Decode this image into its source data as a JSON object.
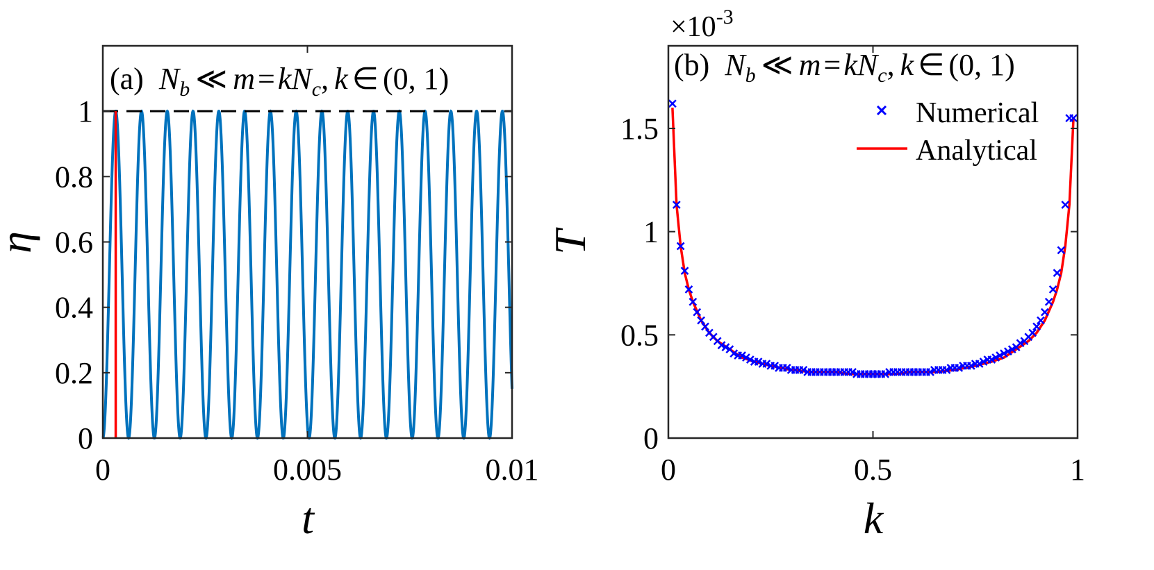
{
  "chart_data": [
    {
      "panel": "a",
      "type": "line",
      "annotation": "(a)  N_b ≪ m = kN_c, k ∈ (0, 1)",
      "xlabel": "t",
      "ylabel": "η",
      "xlim": [
        0,
        0.01
      ],
      "ylim": [
        0,
        1.2
      ],
      "xticks": [
        0,
        0.005,
        0.01
      ],
      "xtick_labels": [
        "0",
        "0.005",
        "0.01"
      ],
      "yticks": [
        0,
        0.2,
        0.4,
        0.6,
        0.8,
        1
      ],
      "ytick_labels": [
        "0",
        "0.2",
        "0.4",
        "0.6",
        "0.8",
        "1"
      ],
      "grid": false,
      "series": [
        {
          "style": "solid",
          "color": "#0072BD",
          "function": "sin^2",
          "params": {
            "period": 0.00063,
            "amplitude": 1
          },
          "x_range": [
            0,
            0.01
          ]
        },
        {
          "style": "vertical-line",
          "color": "#FF0000",
          "x": 0.000315,
          "y_range": [
            0,
            1
          ]
        },
        {
          "style": "dashed-reference",
          "color": "#000000",
          "y": 1
        }
      ]
    },
    {
      "panel": "b",
      "type": "scatter",
      "annotation": "(b)  N_b ≪ m = kN_c, k ∈ (0, 1)",
      "xlabel": "k",
      "ylabel": "T",
      "exponent_label": "×10",
      "exponent_power": "-3",
      "xlim": [
        0,
        1
      ],
      "ylim": [
        0,
        1.9
      ],
      "xticks": [
        0,
        0.5,
        1
      ],
      "xtick_labels": [
        "0",
        "0.5",
        "1"
      ],
      "yticks": [
        0,
        0.5,
        1,
        1.5
      ],
      "ytick_labels": [
        "0",
        "0.5",
        "1",
        "1.5"
      ],
      "grid": false,
      "legend_position": "top-right",
      "series": [
        {
          "name": "Numerical",
          "marker": "x",
          "color": "#0000FF",
          "x": [
            0.01,
            0.02,
            0.03,
            0.04,
            0.05,
            0.06,
            0.07,
            0.08,
            0.09,
            0.1,
            0.11,
            0.12,
            0.13,
            0.14,
            0.15,
            0.16,
            0.17,
            0.18,
            0.19,
            0.2,
            0.21,
            0.22,
            0.23,
            0.24,
            0.25,
            0.26,
            0.27,
            0.28,
            0.29,
            0.3,
            0.31,
            0.32,
            0.33,
            0.34,
            0.35,
            0.36,
            0.37,
            0.38,
            0.39,
            0.4,
            0.41,
            0.42,
            0.43,
            0.44,
            0.45,
            0.46,
            0.47,
            0.48,
            0.49,
            0.5,
            0.51,
            0.52,
            0.53,
            0.54,
            0.55,
            0.56,
            0.57,
            0.58,
            0.59,
            0.6,
            0.61,
            0.62,
            0.63,
            0.64,
            0.65,
            0.66,
            0.67,
            0.68,
            0.69,
            0.7,
            0.71,
            0.72,
            0.73,
            0.74,
            0.75,
            0.76,
            0.77,
            0.78,
            0.79,
            0.8,
            0.81,
            0.82,
            0.83,
            0.84,
            0.85,
            0.86,
            0.87,
            0.88,
            0.89,
            0.9,
            0.91,
            0.92,
            0.93,
            0.94,
            0.95,
            0.96,
            0.97,
            0.98,
            0.99
          ],
          "values": [
            1.62,
            1.13,
            0.93,
            0.81,
            0.72,
            0.66,
            0.61,
            0.57,
            0.54,
            0.51,
            0.49,
            0.47,
            0.45,
            0.44,
            0.43,
            0.41,
            0.4,
            0.4,
            0.39,
            0.38,
            0.37,
            0.37,
            0.36,
            0.36,
            0.35,
            0.35,
            0.34,
            0.34,
            0.34,
            0.33,
            0.33,
            0.33,
            0.33,
            0.32,
            0.32,
            0.32,
            0.32,
            0.32,
            0.32,
            0.32,
            0.32,
            0.32,
            0.32,
            0.32,
            0.32,
            0.31,
            0.31,
            0.31,
            0.31,
            0.31,
            0.31,
            0.31,
            0.31,
            0.32,
            0.32,
            0.32,
            0.32,
            0.32,
            0.32,
            0.32,
            0.32,
            0.32,
            0.32,
            0.32,
            0.33,
            0.33,
            0.33,
            0.33,
            0.34,
            0.34,
            0.34,
            0.35,
            0.35,
            0.35,
            0.36,
            0.36,
            0.37,
            0.38,
            0.38,
            0.39,
            0.4,
            0.41,
            0.42,
            0.43,
            0.44,
            0.46,
            0.47,
            0.49,
            0.51,
            0.54,
            0.57,
            0.61,
            0.66,
            0.72,
            0.8,
            0.91,
            1.13,
            1.55,
            1.55
          ]
        },
        {
          "name": "Analytical",
          "style": "solid",
          "color": "#FF0000",
          "x": [
            0.01,
            0.02,
            0.03,
            0.04,
            0.05,
            0.06,
            0.08,
            0.1,
            0.12,
            0.15,
            0.18,
            0.21,
            0.25,
            0.3,
            0.35,
            0.4,
            0.45,
            0.5,
            0.55,
            0.6,
            0.65,
            0.7,
            0.75,
            0.79,
            0.82,
            0.85,
            0.88,
            0.9,
            0.92,
            0.94,
            0.95,
            0.96,
            0.97,
            0.98,
            0.99
          ],
          "values": [
            1.6,
            1.13,
            0.93,
            0.8,
            0.72,
            0.66,
            0.57,
            0.51,
            0.47,
            0.43,
            0.39,
            0.37,
            0.35,
            0.33,
            0.32,
            0.32,
            0.31,
            0.31,
            0.31,
            0.32,
            0.32,
            0.33,
            0.35,
            0.37,
            0.39,
            0.43,
            0.47,
            0.51,
            0.57,
            0.66,
            0.72,
            0.8,
            0.93,
            1.13,
            1.55
          ]
        }
      ]
    }
  ]
}
